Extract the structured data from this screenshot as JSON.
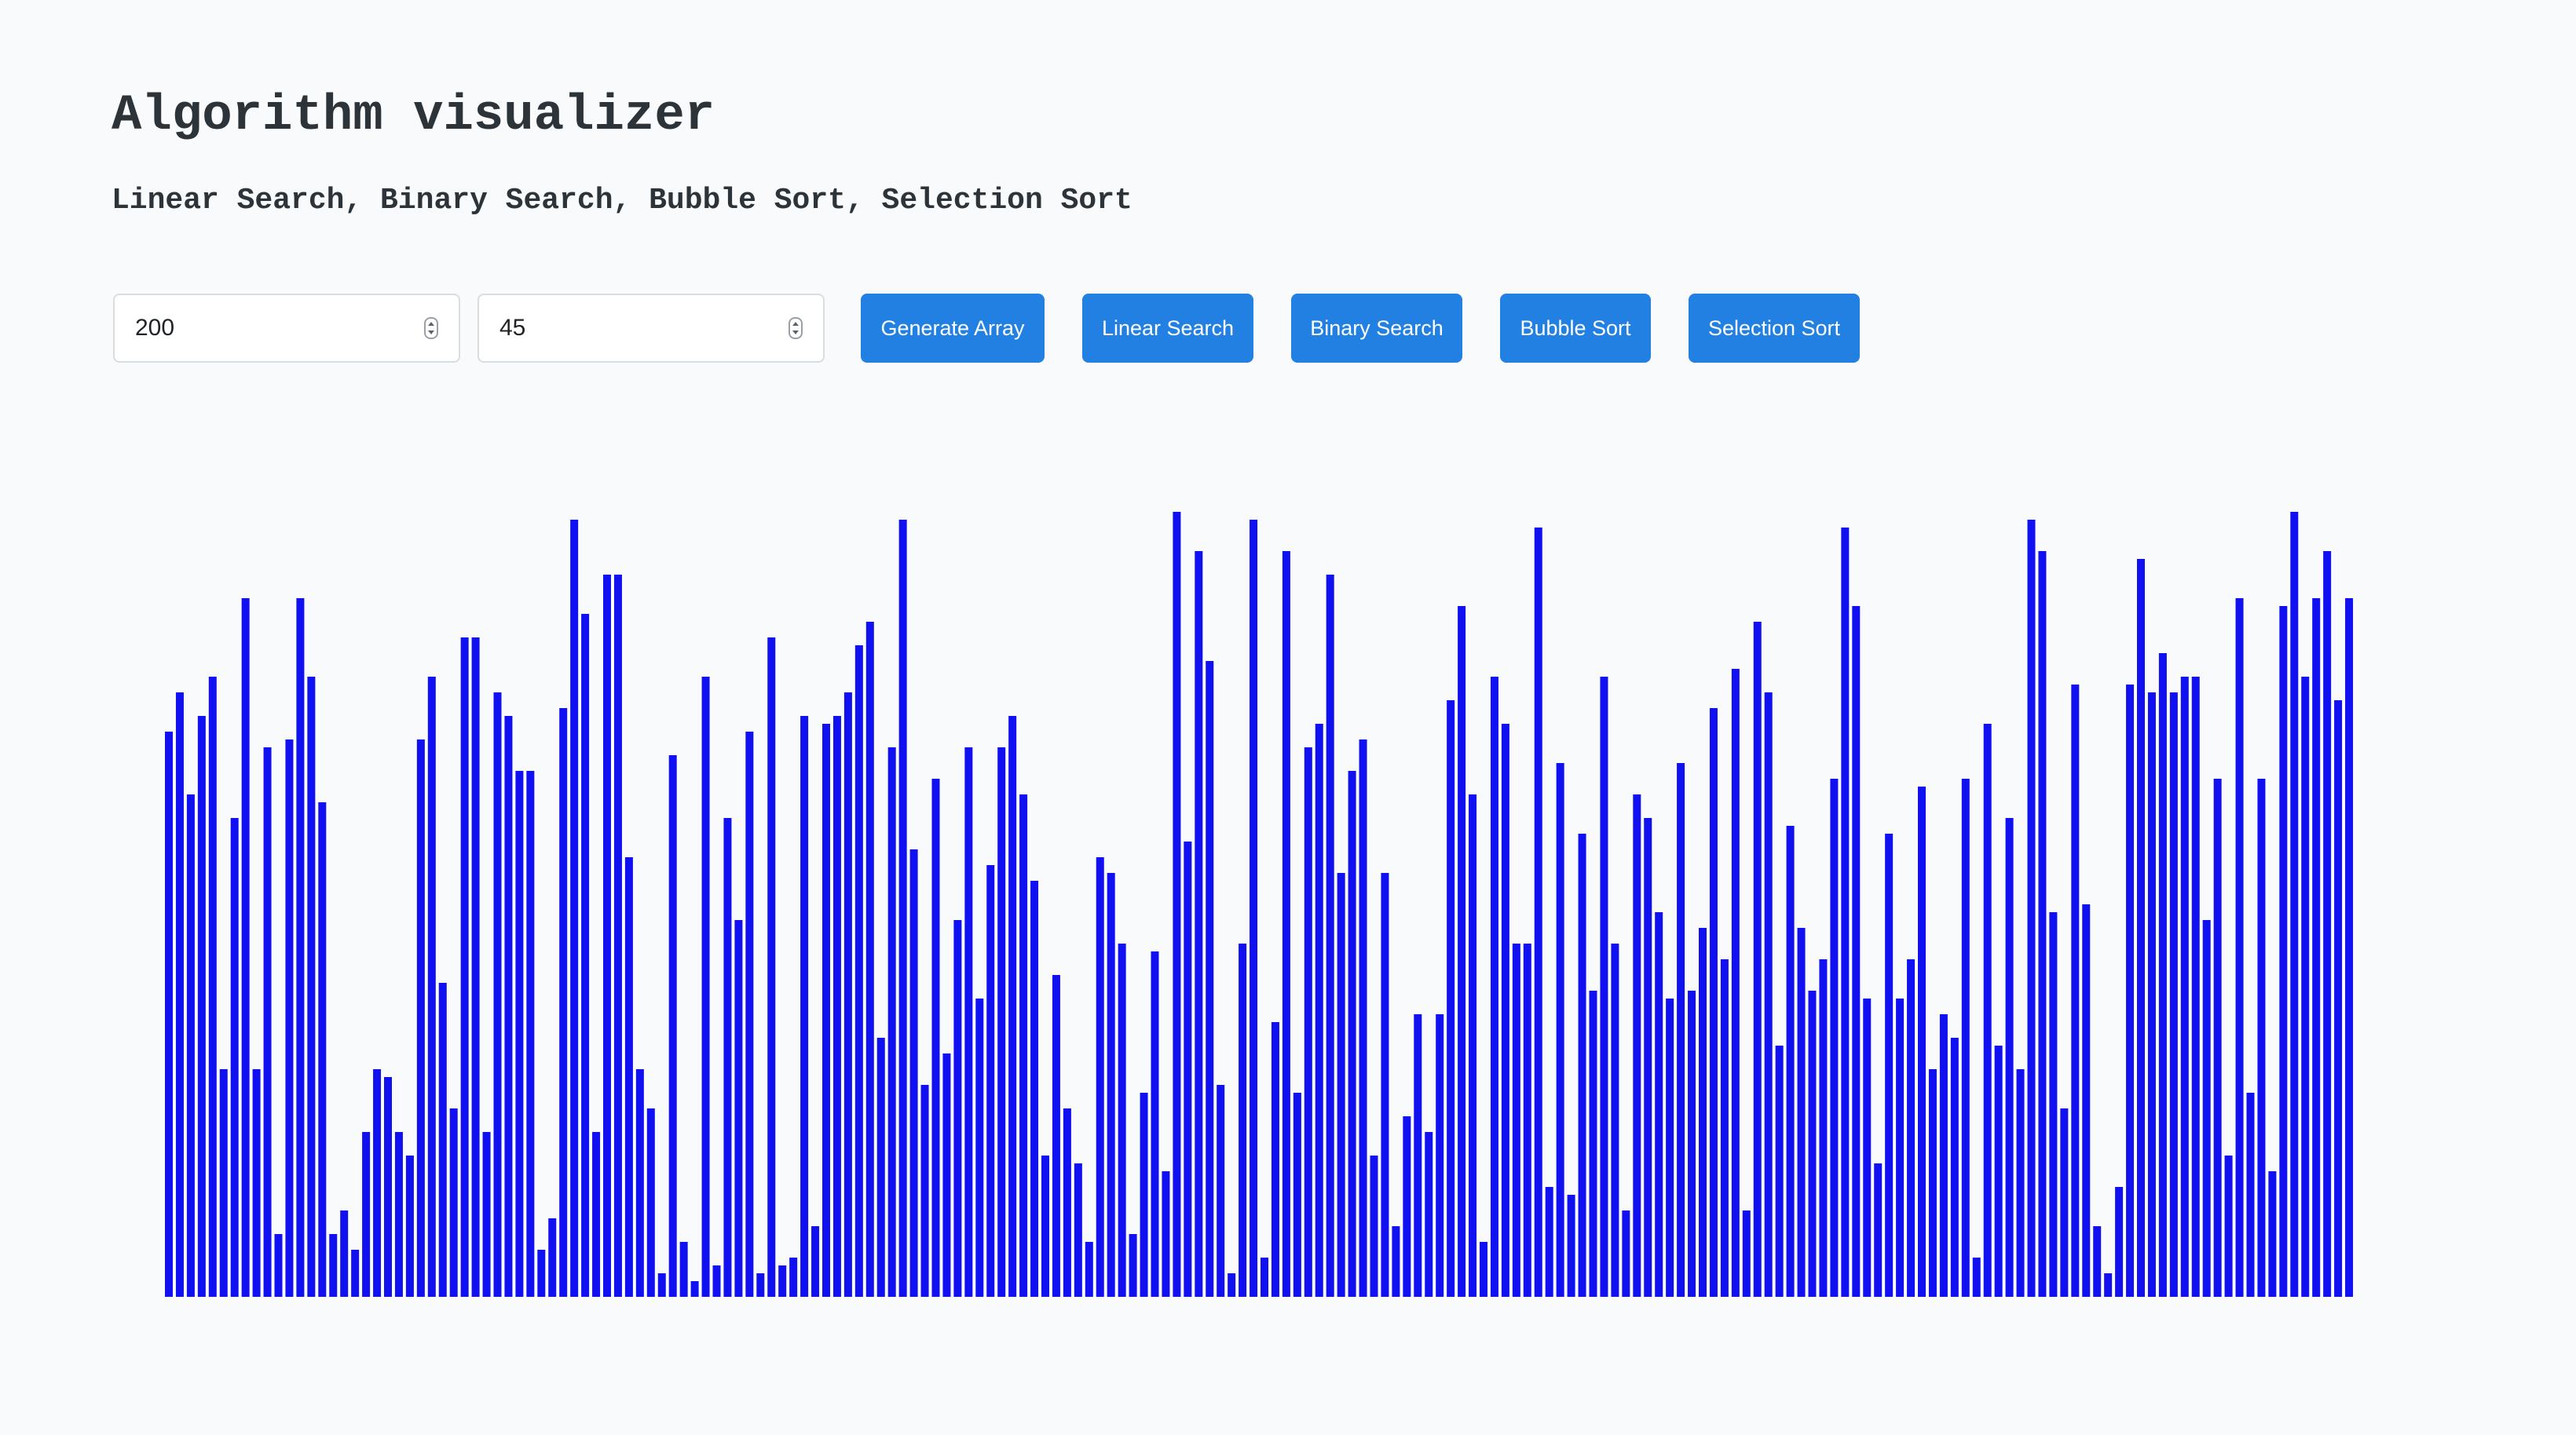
{
  "header": {
    "title": "Algorithm visualizer",
    "subtitle": "Linear Search, Binary Search, Bubble Sort, Selection Sort"
  },
  "controls": {
    "array_size_value": "200",
    "target_value": "45",
    "buttons": {
      "generate": "Generate Array",
      "linear": "Linear Search",
      "binary": "Binary Search",
      "bubble": "Bubble Sort",
      "selection": "Selection Sort"
    }
  },
  "colors": {
    "background": "#f8fafc",
    "button": "#2180e1",
    "button_text": "#ffffff",
    "bar": "#1010f0",
    "title_text": "#2d3439"
  },
  "chart_data": {
    "type": "bar",
    "ylim": [
      0,
      100
    ],
    "values": [
      72,
      77,
      64,
      74,
      79,
      29,
      61,
      89,
      29,
      70,
      8,
      71,
      89,
      79,
      63,
      8,
      11,
      6,
      21,
      29,
      28,
      21,
      18,
      71,
      79,
      40,
      24,
      84,
      84,
      21,
      77,
      74,
      67,
      67,
      6,
      10,
      75,
      99,
      87,
      21,
      92,
      92,
      56,
      29,
      24,
      3,
      69,
      7,
      2,
      79,
      4,
      61,
      48,
      72,
      3,
      84,
      4,
      5,
      74,
      9,
      73,
      74,
      77,
      83,
      86,
      33,
      70,
      99,
      57,
      27,
      66,
      31,
      48,
      70,
      38,
      55,
      70,
      74,
      64,
      53,
      18,
      41,
      24,
      17,
      7,
      56,
      54,
      45,
      8,
      26,
      44,
      16,
      100,
      58,
      95,
      81,
      27,
      3,
      45,
      99,
      5,
      35,
      95,
      26,
      70,
      73,
      92,
      54,
      67,
      71,
      18,
      54,
      9,
      23,
      36,
      21,
      36,
      76,
      88,
      64,
      7,
      79,
      73,
      45,
      45,
      98,
      14,
      68,
      13,
      59,
      39,
      79,
      45,
      11,
      64,
      61,
      49,
      38,
      68,
      39,
      47,
      75,
      43,
      80,
      11,
      86,
      77,
      32,
      60,
      47,
      39,
      43,
      66,
      98,
      88,
      38,
      17,
      59,
      38,
      43,
      65,
      29,
      36,
      33,
      66,
      5,
      73,
      32,
      61,
      29,
      99,
      95,
      49,
      24,
      78,
      50,
      9,
      3,
      14,
      78,
      94,
      77,
      82,
      77,
      79,
      79,
      48,
      66,
      18,
      89,
      26,
      66,
      16,
      88,
      100,
      79,
      89,
      95,
      76,
      89
    ]
  }
}
